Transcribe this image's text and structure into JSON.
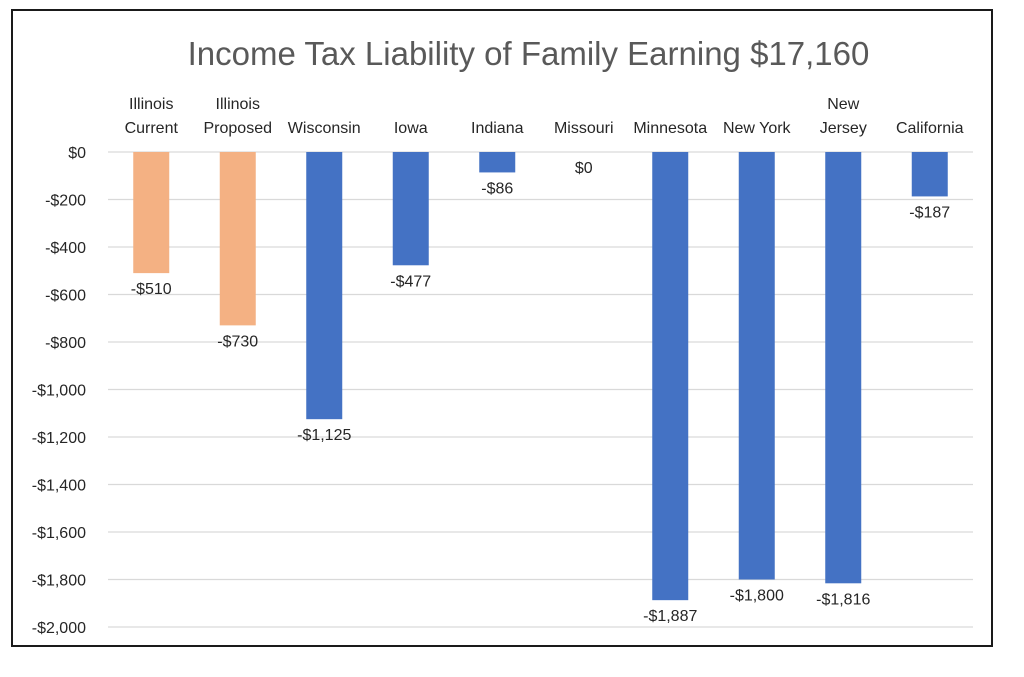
{
  "chart_data": {
    "type": "bar",
    "title": "Income Tax Liability of Family Earning $17,160",
    "categories": [
      [
        "Illinois",
        "Current"
      ],
      [
        "Illinois",
        "Proposed"
      ],
      [
        "Wisconsin"
      ],
      [
        "Iowa"
      ],
      [
        "Indiana"
      ],
      [
        "Missouri"
      ],
      [
        "Minnesota"
      ],
      [
        "New York"
      ],
      [
        "New",
        "Jersey"
      ],
      [
        "California"
      ]
    ],
    "values": [
      -510,
      -730,
      -1125,
      -477,
      -86,
      0,
      -1887,
      -1800,
      -1816,
      -187
    ],
    "data_labels": [
      "-$510",
      "-$730",
      "-$1,125",
      "-$477",
      "-$86",
      "$0",
      "-$1,887",
      "-$1,800",
      "-$1,816",
      "-$187"
    ],
    "bar_colors": [
      "#f4b183",
      "#f4b183",
      "#4472c4",
      "#4472c4",
      "#4472c4",
      "#4472c4",
      "#4472c4",
      "#4472c4",
      "#4472c4",
      "#4472c4"
    ],
    "ylim": [
      -2000,
      0
    ],
    "yticks": [
      0,
      -200,
      -400,
      -600,
      -800,
      -1000,
      -1200,
      -1400,
      -1600,
      -1800,
      -2000
    ],
    "ytick_labels": [
      "$0",
      "-$200",
      "-$400",
      "-$600",
      "-$800",
      "-$1,000",
      "-$1,200",
      "-$1,400",
      "-$1,600",
      "-$1,800",
      "-$2,000"
    ],
    "xlabel": "",
    "ylabel": "",
    "grid": true,
    "legend": "none"
  }
}
